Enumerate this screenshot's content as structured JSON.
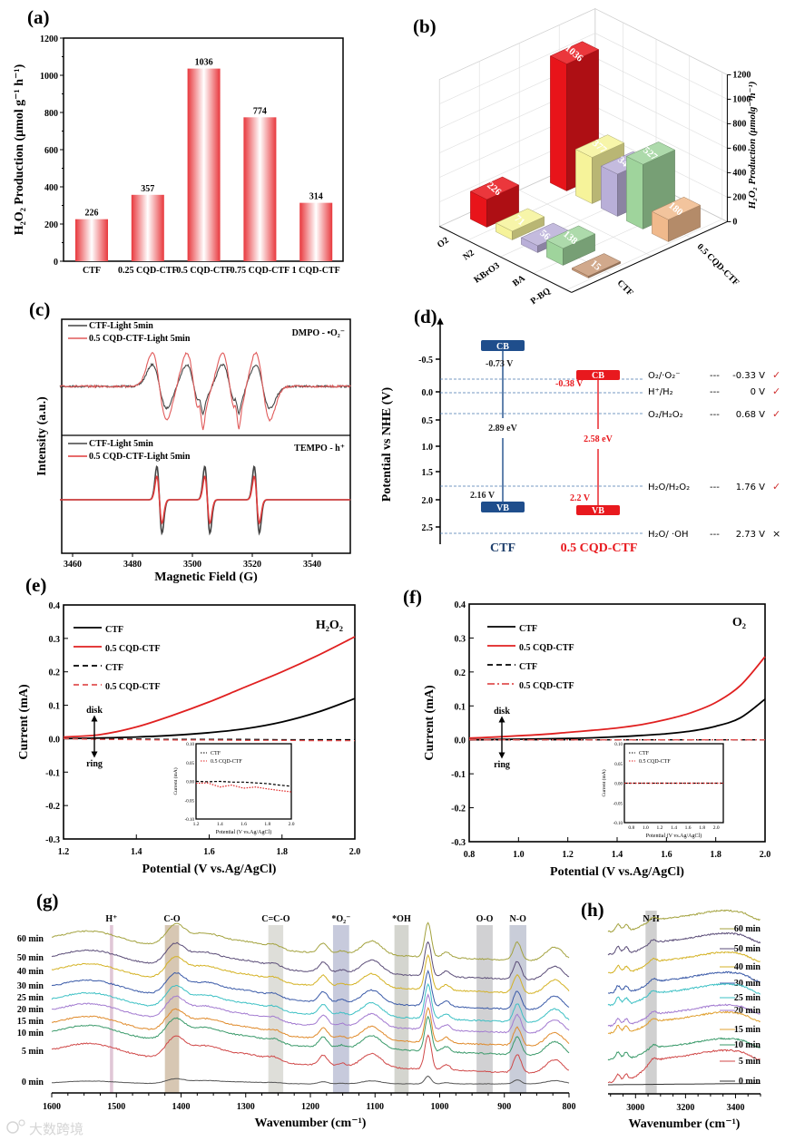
{
  "figure_labels": [
    "(a)",
    "(b)",
    "(c)",
    "(d)",
    "(e)",
    "(f)",
    "(g)",
    "(h)"
  ],
  "watermark": "大数跨境",
  "chart_data": [
    {
      "panel": "a",
      "type": "bar",
      "categories": [
        "CTF",
        "0.25 CQD-CTF",
        "0.5 CQD-CTF",
        "0.75 CQD-CTF",
        "1 CQD-CTF"
      ],
      "values": [
        226,
        357,
        1036,
        774,
        314
      ],
      "data_labels": [
        "226",
        "357",
        "1036",
        "774",
        "314"
      ],
      "ylabel": "H₂O₂ Production (μmol g⁻¹ h⁻¹)",
      "xlabel": "",
      "ylim": [
        0,
        1200
      ],
      "yticks": [
        "0",
        "200",
        "400",
        "600",
        "800",
        "1000",
        "1200"
      ],
      "color": "#e8383d"
    },
    {
      "panel": "b",
      "type": "bar3d",
      "rows": [
        "O2",
        "N2",
        "KBrO3",
        "BA",
        "P-BQ"
      ],
      "columns": [
        "CTF",
        "0.5 CQD-CTF"
      ],
      "series": [
        {
          "name": "CTF",
          "values": [
            226,
            71,
            56,
            138,
            15
          ],
          "labels": [
            "226",
            "71",
            "56",
            "138",
            "15"
          ]
        },
        {
          "name": "0.5 CQD-CTF",
          "values": [
            1036,
            377,
            344,
            527,
            180
          ],
          "labels": [
            "1036",
            "377",
            "344",
            "527",
            "180"
          ]
        }
      ],
      "row_colors": [
        "#e8141a",
        "#f6f39a",
        "#b9afd8",
        "#9fd49c",
        "#f0b98c"
      ],
      "zlabel": "H₂O₂ Production (μmolg⁻¹h⁻¹)",
      "zlim": [
        0,
        1200
      ],
      "zticks": [
        "0",
        "200",
        "400",
        "600",
        "800",
        "1000",
        "1200"
      ]
    },
    {
      "panel": "c",
      "type": "line",
      "xlabel": "Magnetic Field (G)",
      "ylabel": "Intensity (a.u.)",
      "xlim": [
        3455,
        3553
      ],
      "xticks": [
        "3460",
        "3480",
        "3500",
        "3520",
        "3540"
      ],
      "subplots": [
        {
          "tag": "DMPO - •O₂⁻",
          "line_centers_G": [
            3489,
            3500.5,
            3512.5,
            3523.5
          ],
          "series": [
            {
              "name": "CTF-Light 5min",
              "color": "#444444",
              "relative_intensity": 0.65
            },
            {
              "name": "0.5 CQD-CTF-Light 5min",
              "color": "#e05a5a",
              "relative_intensity": 1.0
            }
          ]
        },
        {
          "tag": "TEMPO - h⁺",
          "line_centers_G": [
            3489,
            3505,
            3521.5
          ],
          "series": [
            {
              "name": "CTF-Light 5min",
              "color": "#444444",
              "relative_intensity": 1.0
            },
            {
              "name": "0.5 CQD-CTF-Light 5min",
              "color": "#e03a3a",
              "relative_intensity": 0.7
            }
          ]
        }
      ]
    },
    {
      "panel": "d",
      "type": "band-diagram",
      "ylabel": "Potential vs NHE (V)",
      "yticks": [
        "-0.5",
        "0.0",
        "0.5",
        "1.0",
        "1.5",
        "2.0",
        "2.5"
      ],
      "materials": [
        {
          "name": "CTF",
          "cb_label": "CB",
          "vb_label": "VB",
          "cb": "-0.73 V",
          "vb": "2.16 V",
          "gap": "2.89 eV",
          "color": "#1f4e8c"
        },
        {
          "name": "0.5 CQD-CTF",
          "cb_label": "CB",
          "vb_label": "VB",
          "cb": "-0.38 V",
          "vb": "2.2 V",
          "gap": "2.58 eV",
          "color": "#e8191e"
        }
      ],
      "potentials": [
        {
          "couple": "O₂/·O₂⁻",
          "dash": "---",
          "value": "-0.33 V",
          "mark": "✓"
        },
        {
          "couple": "H⁺/H₂",
          "dash": "---",
          "value": "0 V",
          "mark": "✓"
        },
        {
          "couple": "O₂/H₂O₂",
          "dash": "---",
          "value": "0.68 V",
          "mark": "✓"
        },
        {
          "couple": "H₂O/H₂O₂",
          "dash": "---",
          "value": "1.76 V",
          "mark": "✓"
        },
        {
          "couple": "H₂O/ ·OH",
          "dash": "---",
          "value": "2.73 V",
          "mark": "×"
        }
      ]
    },
    {
      "panel": "e",
      "type": "line",
      "tag": "H₂O₂",
      "xlabel": "Potential (V vs.Ag/AgCl)",
      "ylabel": "Current (mA)",
      "xlim": [
        1.2,
        2.0
      ],
      "ylim": [
        -0.3,
        0.4
      ],
      "xticks": [
        "1.2",
        "1.4",
        "1.6",
        "1.8",
        "2.0"
      ],
      "yticks": [
        "-0.3",
        "-0.2",
        "-0.1",
        "0.0",
        "0.1",
        "0.2",
        "0.3",
        "0.4"
      ],
      "annotations": {
        "disk": "disk",
        "ring": "ring"
      },
      "x": [
        1.2,
        1.3,
        1.4,
        1.5,
        1.6,
        1.7,
        1.8,
        1.9,
        2.0
      ],
      "series": [
        {
          "name": "CTF",
          "electrode": "disk",
          "style": "solid",
          "color": "#000000",
          "y": [
            0,
            0.002,
            0.005,
            0.01,
            0.018,
            0.03,
            0.05,
            0.08,
            0.12
          ]
        },
        {
          "name": "0.5 CQD-CTF",
          "electrode": "disk",
          "style": "solid",
          "color": "#e02020",
          "y": [
            0.005,
            0.012,
            0.035,
            0.07,
            0.11,
            0.155,
            0.2,
            0.25,
            0.305
          ]
        },
        {
          "name": "CTF",
          "electrode": "ring",
          "style": "dash",
          "color": "#000000",
          "y": [
            0,
            -0.001,
            -0.001,
            -0.002,
            -0.002,
            -0.002,
            -0.003,
            -0.003,
            -0.003
          ]
        },
        {
          "name": "0.5 CQD-CTF",
          "electrode": "ring",
          "style": "dash",
          "color": "#e05050",
          "y": [
            0,
            -0.002,
            -0.003,
            -0.004,
            -0.004,
            -0.005,
            -0.005,
            -0.006,
            -0.006
          ]
        }
      ],
      "inset": {
        "xlabel": "Potential (V vs.Ag/AgCl)",
        "ylabel": "Current (mA)",
        "xlim": [
          1.2,
          2.0
        ],
        "ylim": [
          -0.1,
          0.1
        ],
        "xticks": [
          "1.2",
          "1.4",
          "1.6",
          "1.8",
          "2.0"
        ],
        "yticks": [
          "-0.10",
          "-0.05",
          "0.00",
          "0.05",
          "0.10"
        ],
        "x": [
          1.2,
          1.3,
          1.4,
          1.5,
          1.6,
          1.7,
          1.8,
          1.9,
          2.0
        ],
        "series": [
          {
            "name": "CTF",
            "color": "#000000",
            "y": [
              0,
              -0.001,
              0,
              -0.002,
              -0.002,
              -0.004,
              -0.006,
              -0.01,
              -0.013
            ]
          },
          {
            "name": "0.5 CQD-CTF",
            "color": "#e02020",
            "y": [
              -0.005,
              -0.004,
              -0.015,
              -0.01,
              -0.018,
              -0.015,
              -0.02,
              -0.024,
              -0.028
            ]
          }
        ]
      }
    },
    {
      "panel": "f",
      "type": "line",
      "tag": "O₂",
      "xlabel": "Potential (V vs.Ag/AgCl)",
      "ylabel": "Current (mA)",
      "xlim": [
        0.8,
        2.0
      ],
      "ylim": [
        -0.3,
        0.4
      ],
      "xticks": [
        "0.8",
        "1.0",
        "1.2",
        "1.4",
        "1.6",
        "1.8",
        "2.0"
      ],
      "yticks": [
        "-0.3",
        "-0.2",
        "-0.1",
        "0.0",
        "0.1",
        "0.2",
        "0.3",
        "0.4"
      ],
      "annotations": {
        "disk": "disk",
        "ring": "ring"
      },
      "x": [
        0.8,
        0.9,
        1.0,
        1.1,
        1.2,
        1.3,
        1.4,
        1.5,
        1.6,
        1.7,
        1.8,
        1.9,
        2.0
      ],
      "series": [
        {
          "name": "CTF",
          "electrode": "disk",
          "style": "solid",
          "color": "#000000",
          "y": [
            0,
            0.001,
            0.002,
            0.003,
            0.004,
            0.006,
            0.009,
            0.013,
            0.018,
            0.026,
            0.04,
            0.065,
            0.12
          ]
        },
        {
          "name": "0.5 CQD-CTF",
          "electrode": "disk",
          "style": "solid",
          "color": "#e02020",
          "y": [
            0.005,
            0.008,
            0.012,
            0.016,
            0.022,
            0.028,
            0.035,
            0.045,
            0.06,
            0.08,
            0.11,
            0.16,
            0.245
          ]
        },
        {
          "name": "CTF",
          "electrode": "ring",
          "style": "dash",
          "color": "#000000",
          "y": [
            0,
            0,
            0,
            0,
            0,
            0,
            0,
            0,
            0,
            0,
            0,
            0,
            0
          ]
        },
        {
          "name": "0.5 CQD-CTF",
          "electrode": "ring",
          "style": "dashdot",
          "color": "#e05050",
          "y": [
            0,
            0,
            0,
            0,
            0,
            0,
            0,
            0,
            0,
            0,
            0,
            0,
            0
          ]
        }
      ],
      "inset": {
        "xlabel": "Potential (V vs.Ag/AgCl)",
        "ylabel": "Current (mA)",
        "xlim": [
          0.7,
          2.1
        ],
        "ylim": [
          -0.1,
          0.1
        ],
        "xticks": [
          "0.8",
          "1.0",
          "1.2",
          "1.4",
          "1.6",
          "1.8",
          "2.0"
        ],
        "yticks": [
          "-0.10",
          "-0.05",
          "0.00",
          "0.05",
          "0.10"
        ],
        "x": [
          0.7,
          2.1
        ],
        "series": [
          {
            "name": "CTF",
            "color": "#000000",
            "y": [
              0,
              0
            ]
          },
          {
            "name": "0.5 CQD-CTF",
            "color": "#e02020",
            "y": [
              0,
              0
            ]
          }
        ]
      }
    },
    {
      "panel": "g",
      "type": "line",
      "xlabel": "Wavenumber (cm⁻¹)",
      "xlim": [
        1600,
        800
      ],
      "xticks": [
        "1600",
        "1500",
        "1400",
        "1300",
        "1200",
        "1100",
        "1000",
        "900",
        "800"
      ],
      "bands": [
        {
          "label": "H⁺",
          "range": [
            1510,
            1505
          ],
          "color": "#d8b8cc"
        },
        {
          "label": "C-O",
          "range": [
            1425,
            1403
          ],
          "color": "#cdb9a0"
        },
        {
          "label": "C=C-O",
          "range": [
            1265,
            1242
          ],
          "color": "#d6d6d0"
        },
        {
          "label": "*O₂⁻",
          "range": [
            1165,
            1140
          ],
          "color": "#b9bdd3"
        },
        {
          "label": "*OH",
          "range": [
            1070,
            1048
          ],
          "color": "#c9cbc3"
        },
        {
          "label": "O-O",
          "range": [
            943,
            918
          ],
          "color": "#c6c6c8"
        },
        {
          "label": "N-O",
          "range": [
            892,
            866
          ],
          "color": "#bcc0cf"
        }
      ],
      "traces": [
        {
          "time": "60 min",
          "color": "#a3a23e"
        },
        {
          "time": "50 min",
          "color": "#5b4d78"
        },
        {
          "time": "40 min",
          "color": "#d4b224"
        },
        {
          "time": "30 min",
          "color": "#3a5aa8"
        },
        {
          "time": "25 min",
          "color": "#3cc0c4"
        },
        {
          "time": "20 min",
          "color": "#a27ad0"
        },
        {
          "time": "15 min",
          "color": "#e08a2a"
        },
        {
          "time": "10 min",
          "color": "#3a9a6a"
        },
        {
          "time": "5 min",
          "color": "#d04848"
        },
        {
          "time": "0 min",
          "color": "#555555"
        }
      ]
    },
    {
      "panel": "h",
      "type": "line",
      "xlabel": "Wavenumber (cm⁻¹)",
      "xlim": [
        2890,
        3500
      ],
      "xticks": [
        "3000",
        "3200",
        "3400"
      ],
      "bands": [
        {
          "label": "N-H",
          "range": [
            3040,
            3085
          ],
          "color": "#c8c8c8"
        }
      ],
      "traces": [
        {
          "time": "60 min",
          "color": "#a3a23e"
        },
        {
          "time": "50 min",
          "color": "#5b4d78"
        },
        {
          "time": "40 min",
          "color": "#d4b224"
        },
        {
          "time": "30 min",
          "color": "#3a5aa8"
        },
        {
          "time": "25 min",
          "color": "#3cc0c4"
        },
        {
          "time": "20 min",
          "color": "#a27ad0"
        },
        {
          "time": "15 min",
          "color": "#e0a030"
        },
        {
          "time": "10 min",
          "color": "#3a9a6a"
        },
        {
          "time": "5 min",
          "color": "#d04848"
        },
        {
          "time": "0 min",
          "color": "#333333"
        }
      ]
    }
  ]
}
